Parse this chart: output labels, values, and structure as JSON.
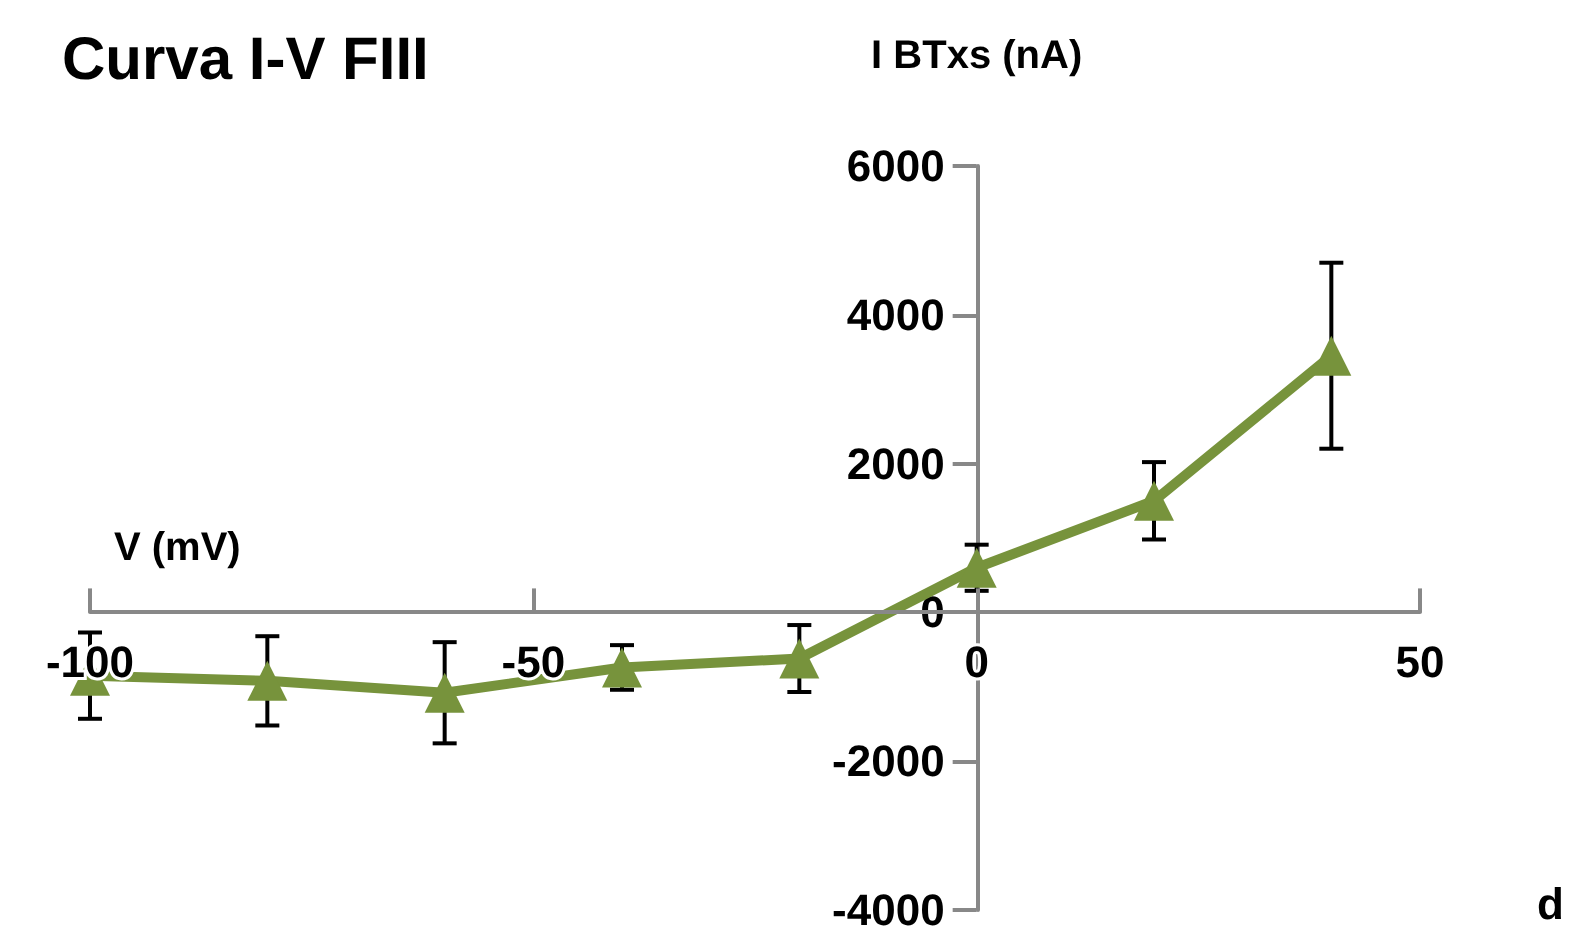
{
  "chart_data": {
    "type": "line",
    "title": "Curva I-V FIII",
    "xlabel": "V (mV)",
    "ylabel": "I BTxs (nA)",
    "annotations": [
      "d"
    ],
    "x": [
      -100,
      -80,
      -60,
      -40,
      -20,
      0,
      20,
      40
    ],
    "series": [
      {
        "color": "#77933c",
        "values": [
          -850,
          -920,
          -1080,
          -740,
          -620,
          600,
          1500,
          3450
        ],
        "errors": [
          580,
          600,
          680,
          300,
          450,
          310,
          520,
          1250
        ]
      }
    ],
    "xlim": [
      -100,
      50
    ],
    "xticks": [
      -100,
      -50,
      0,
      50
    ],
    "ylim": [
      -4000,
      6000
    ],
    "yticks": [
      -4000,
      -2000,
      0,
      2000,
      4000,
      6000
    ],
    "marker": "triangle",
    "line_style": "solid"
  }
}
